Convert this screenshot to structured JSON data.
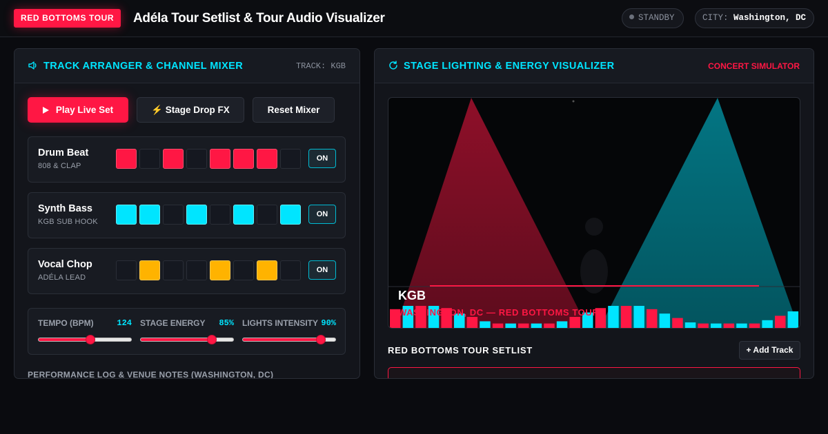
{
  "header": {
    "badge": "RED BOTTOMS TOUR",
    "title": "Adéla Tour Setlist & Tour Audio Visualizer",
    "status": "STANDBY",
    "city_label": "CITY:",
    "city_value": "Washington, DC"
  },
  "mixer": {
    "title": "TRACK ARRANGER & CHANNEL MIXER",
    "track_meta": "TRACK: KGB",
    "buttons": {
      "play": "Play Live Set",
      "drop": "⚡ Stage Drop FX",
      "reset": "Reset Mixer"
    },
    "tracks": [
      {
        "name": "Drum Beat",
        "sub": "808 & CLAP",
        "color": "#ff1744",
        "steps": [
          1,
          0,
          1,
          0,
          1,
          1,
          1,
          0
        ],
        "toggle": "ON"
      },
      {
        "name": "Synth Bass",
        "sub": "KGB SUB HOOK",
        "color": "#00e5ff",
        "steps": [
          1,
          1,
          0,
          1,
          0,
          1,
          0,
          1
        ],
        "toggle": "ON"
      },
      {
        "name": "Vocal Chop",
        "sub": "ADÉLA LEAD",
        "color": "#ffb300",
        "steps": [
          0,
          1,
          0,
          0,
          1,
          0,
          1,
          0
        ],
        "toggle": "ON"
      }
    ],
    "sliders": [
      {
        "label": "TEMPO (BPM)",
        "value": "124",
        "fraction": 0.56
      },
      {
        "label": "STAGE ENERGY",
        "value": "85%",
        "fraction": 0.77
      },
      {
        "label": "LIGHTS INTENSITY",
        "value": "90%",
        "fraction": 0.84
      }
    ],
    "notes_label": "PERFORMANCE LOG & VENUE NOTES (WASHINGTON, DC)"
  },
  "visualizer": {
    "title": "STAGE LIGHTING & ENERGY VISUALIZER",
    "meta": "CONCERT SIMULATOR",
    "now_playing": "KGB",
    "location_line": "WASHINGTON, DC — RED BOTTOMS TOUR",
    "setlist_title": "RED BOTTOMS TOUR SETLIST",
    "add_track": "+ Add Track",
    "colors": {
      "red": "#ff1744",
      "cyan": "#00e5ff"
    },
    "bars": [
      0.85,
      1.0,
      1.0,
      1.0,
      0.9,
      0.65,
      0.5,
      0.3,
      0.2,
      0.2,
      0.2,
      0.2,
      0.2,
      0.3,
      0.5,
      0.7,
      0.9,
      1.0,
      1.0,
      1.0,
      0.85,
      0.65,
      0.45,
      0.25,
      0.2,
      0.2,
      0.2,
      0.2,
      0.2,
      0.35,
      0.55,
      0.75
    ]
  }
}
